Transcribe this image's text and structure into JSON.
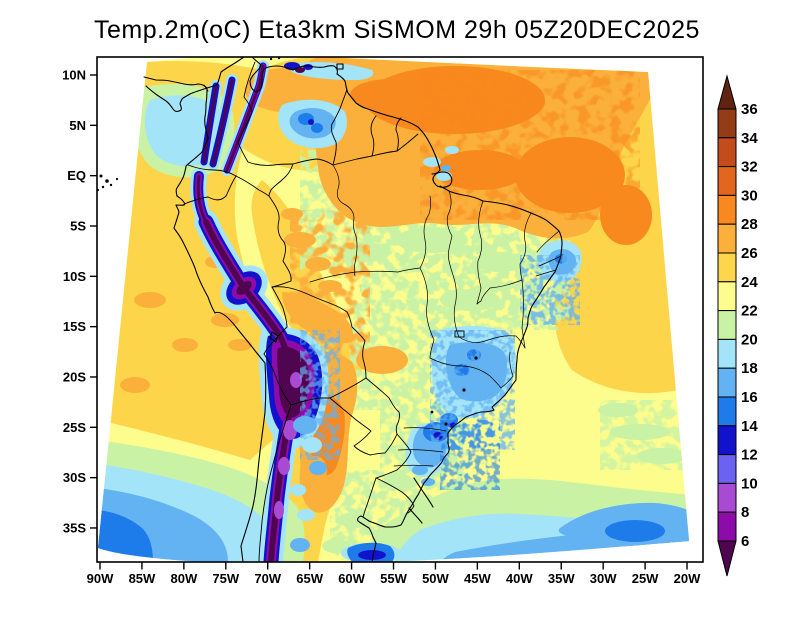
{
  "title": "Temp.2m(oC) Eta3km SiSMOM 29h 05Z20DEC2025",
  "axes": {
    "lat_labels": [
      "10N",
      "5N",
      "EQ",
      "5S",
      "10S",
      "15S",
      "20S",
      "25S",
      "30S",
      "35S"
    ],
    "lon_labels": [
      "90W",
      "85W",
      "80W",
      "75W",
      "70W",
      "65W",
      "60W",
      "55W",
      "50W",
      "45W",
      "40W",
      "35W",
      "30W",
      "25W",
      "20W"
    ]
  },
  "colorbar": {
    "tick_values": [
      "36",
      "34",
      "32",
      "30",
      "28",
      "26",
      "24",
      "22",
      "20",
      "18",
      "16",
      "14",
      "12",
      "10",
      "8",
      "6"
    ],
    "segment_colors": [
      "#943c16",
      "#c24c1c",
      "#e2661d",
      "#f8891e",
      "#fbb03c",
      "#fdd64b",
      "#fdfd8d",
      "#c9f2a5",
      "#a3e4f8",
      "#63b2f2",
      "#1e7cea",
      "#1212cc",
      "#6b62f2",
      "#a94bd2",
      "#8d0ca9"
    ],
    "above_color": "#5e2410",
    "below_color": "#500551"
  },
  "field_colors": {
    "gold_24_26": "#fcd54b",
    "pale_yellow_22_24": "#fdfd8d",
    "pale_green_20_22": "#c9f2a5",
    "cyan_18_20": "#a3e4f8",
    "light_blue_16_18": "#63b2f2",
    "mid_blue_14_16": "#1e7cea",
    "dark_blue_12_14": "#1212cc",
    "magenta_8_10": "#a94bd2",
    "dark_magenta_6_8": "#8d0ca9",
    "deep_purple_lt6": "#500551",
    "orange_26_28": "#fbb03c",
    "dark_orange_28_30": "#f8891e"
  }
}
